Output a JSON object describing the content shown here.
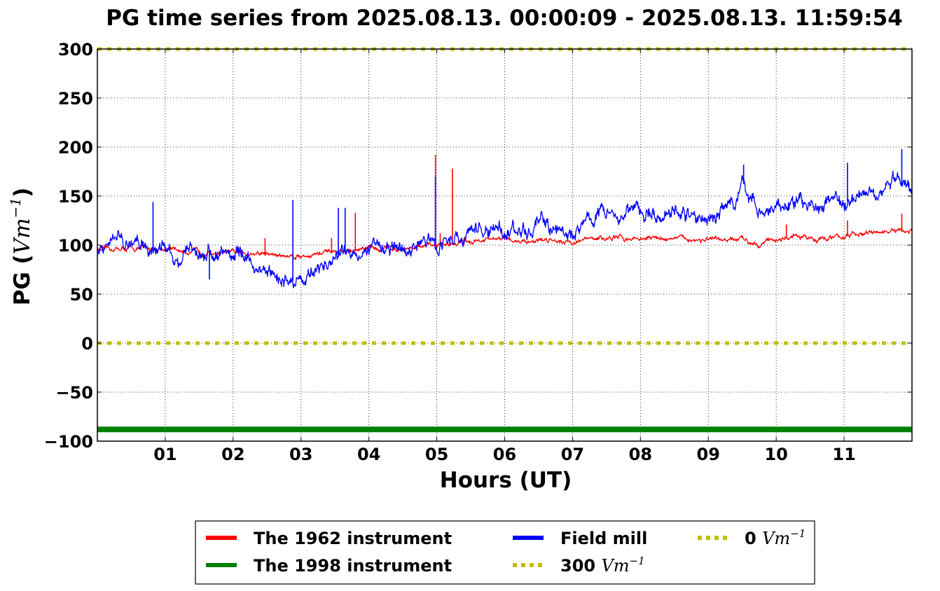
{
  "chart_data": {
    "type": "line",
    "title": "PG time series from 2025.08.13. 00:00:09 - 2025.08.13. 11:59:54",
    "xlabel": "Hours (UT)",
    "ylabel_main": "PG (",
    "ylabel_unit": "Vm",
    "ylabel_exp": "−1",
    "ylabel_close": ")",
    "xlim": [
      0,
      12
    ],
    "ylim": [
      -100,
      300
    ],
    "x_ticks": [
      {
        "value": 1,
        "label": "01"
      },
      {
        "value": 2,
        "label": "02"
      },
      {
        "value": 3,
        "label": "03"
      },
      {
        "value": 4,
        "label": "04"
      },
      {
        "value": 5,
        "label": "05"
      },
      {
        "value": 6,
        "label": "06"
      },
      {
        "value": 7,
        "label": "07"
      },
      {
        "value": 8,
        "label": "08"
      },
      {
        "value": 9,
        "label": "09"
      },
      {
        "value": 10,
        "label": "10"
      },
      {
        "value": 11,
        "label": "11"
      }
    ],
    "y_ticks": [
      {
        "value": 300,
        "label": "300"
      },
      {
        "value": 250,
        "label": "250"
      },
      {
        "value": 200,
        "label": "200"
      },
      {
        "value": 150,
        "label": "150"
      },
      {
        "value": 100,
        "label": "100"
      },
      {
        "value": 50,
        "label": "50"
      },
      {
        "value": 0,
        "label": "0"
      },
      {
        "value": -50,
        "label": "−50"
      },
      {
        "value": -100,
        "label": "−100"
      }
    ],
    "grid": true,
    "legend_position": "bottom",
    "series": [
      {
        "name": "The 1962 instrument",
        "color": "#ff0000",
        "style": "line",
        "x": [
          0,
          0.25,
          0.5,
          0.75,
          1,
          1.25,
          1.5,
          1.75,
          2,
          2.25,
          2.5,
          2.75,
          3,
          3.25,
          3.5,
          3.75,
          4,
          4.25,
          4.5,
          4.75,
          5,
          5.25,
          5.5,
          5.75,
          6,
          6.25,
          6.5,
          6.75,
          7,
          7.25,
          7.5,
          7.75,
          8,
          8.25,
          8.5,
          8.75,
          9,
          9.25,
          9.5,
          9.75,
          10,
          10.25,
          10.5,
          10.75,
          11,
          11.25,
          11.5,
          11.75,
          12
        ],
        "y": [
          95,
          96,
          96,
          97,
          96,
          94,
          93,
          92,
          92,
          92,
          91,
          89,
          89,
          91,
          93,
          94,
          96,
          97,
          97,
          98,
          100,
          102,
          104,
          105,
          106,
          104,
          105,
          106,
          103,
          106,
          107,
          107,
          107,
          107,
          107,
          106,
          105,
          104,
          106,
          102,
          106,
          108,
          107,
          107,
          109,
          111,
          113,
          114,
          113
        ],
        "spikes": [
          {
            "x": 2.47,
            "y": 107
          },
          {
            "x": 3.45,
            "y": 107
          },
          {
            "x": 3.8,
            "y": 133
          },
          {
            "x": 4.98,
            "y": 192
          },
          {
            "x": 5.23,
            "y": 178
          },
          {
            "x": 5.05,
            "y": 112
          },
          {
            "x": 10.15,
            "y": 121
          },
          {
            "x": 11.05,
            "y": 125
          },
          {
            "x": 11.85,
            "y": 132
          }
        ],
        "noise": 3
      },
      {
        "name": "Field mill",
        "color": "#0000ff",
        "style": "line",
        "x": [
          0,
          0.2,
          0.35,
          0.5,
          0.65,
          0.8,
          1,
          1.2,
          1.4,
          1.6,
          1.8,
          2,
          2.2,
          2.4,
          2.6,
          2.8,
          3,
          3.2,
          3.4,
          3.6,
          3.8,
          4,
          4.2,
          4.4,
          4.6,
          4.8,
          5,
          5.2,
          5.4,
          5.6,
          5.8,
          6,
          6.2,
          6.4,
          6.6,
          6.8,
          7,
          7.2,
          7.4,
          7.6,
          7.8,
          8,
          8.2,
          8.4,
          8.6,
          8.8,
          9,
          9.2,
          9.4,
          9.5,
          9.6,
          9.8,
          10,
          10.2,
          10.4,
          10.6,
          10.8,
          11,
          11.2,
          11.4,
          11.6,
          11.8,
          12
        ],
        "y": [
          92,
          99,
          108,
          98,
          102,
          96,
          97,
          87,
          94,
          91,
          90,
          93,
          86,
          73,
          69,
          62,
          66,
          72,
          82,
          90,
          94,
          97,
          99,
          96,
          93,
          105,
          100,
          108,
          107,
          115,
          115,
          118,
          112,
          118,
          119,
          116,
          110,
          125,
          136,
          132,
          134,
          133,
          130,
          136,
          132,
          127,
          126,
          138,
          145,
          165,
          152,
          128,
          137,
          144,
          142,
          140,
          147,
          140,
          158,
          158,
          159,
          167,
          160
        ],
        "spikes": [
          {
            "x": 0.82,
            "y": 144
          },
          {
            "x": 2.88,
            "y": 146
          },
          {
            "x": 3.55,
            "y": 138
          },
          {
            "x": 3.65,
            "y": 138
          },
          {
            "x": 4.98,
            "y": 170
          },
          {
            "x": 9.52,
            "y": 182
          },
          {
            "x": 11.85,
            "y": 198
          },
          {
            "x": 11.05,
            "y": 184
          },
          {
            "x": 1.65,
            "y": 65
          }
        ],
        "noise": 9
      },
      {
        "name": "The 1998 instrument",
        "color": "#008000",
        "style": "line",
        "x": [
          0,
          12
        ],
        "y": [
          -88,
          -88
        ]
      },
      {
        "name": "300 Vm−1",
        "color": "#bfbf00",
        "style": "dotted",
        "x": [
          0,
          12
        ],
        "y": [
          300,
          300
        ]
      },
      {
        "name": "0 Vm−1",
        "color": "#bfbf00",
        "style": "dotted",
        "x": [
          0,
          12
        ],
        "y": [
          0,
          0
        ]
      }
    ],
    "legend": [
      {
        "label": "The 1962 instrument",
        "color": "#ff0000",
        "style": "solid"
      },
      {
        "label": "The 1998 instrument",
        "color": "#008000",
        "style": "solid"
      },
      {
        "label": "Field mill",
        "color": "#0000ff",
        "style": "solid"
      },
      {
        "label": "300 ",
        "unit": "Vm",
        "exp": "−1",
        "color": "#bfbf00",
        "style": "dotted"
      },
      {
        "label": "0 ",
        "unit": "Vm",
        "exp": "−1",
        "color": "#bfbf00",
        "style": "dotted"
      }
    ]
  }
}
